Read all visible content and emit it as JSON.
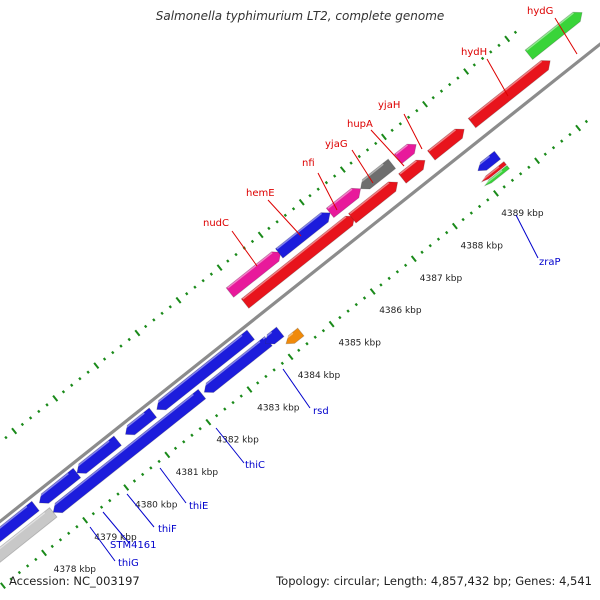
{
  "title": "Salmonella typhimurium LT2, complete genome",
  "footer": {
    "accession": "Accession: NC_003197",
    "summary": "Topology: circular; Length: 4,857,432 bp; Genes: 4,541"
  },
  "colors": {
    "forward_gene": "#e8141c",
    "reverse_gene": "#1c1cdc",
    "pink_gene": "#e8199b",
    "gray_gene": "#6e6e6e",
    "green_gene": "#39d439",
    "orange_gene": "#f08a0a",
    "light_gray_gene": "#c8c8c8",
    "backbone": "#8c8c8c",
    "tick_marks": "#1a8a1a",
    "forward_label": "#dd0000",
    "reverse_label": "#0000cc"
  },
  "scale_ticks": [
    "4378 kbp",
    "4379 kbp",
    "4380 kbp",
    "4381 kbp",
    "4382 kbp",
    "4383 kbp",
    "4384 kbp",
    "4385 kbp",
    "4386 kbp",
    "4387 kbp",
    "4388 kbp",
    "4389 kbp"
  ],
  "forward_labels": [
    "nudC",
    "hemE",
    "nfi",
    "yjaG",
    "hupA",
    "yjaH",
    "hydH",
    "hydG"
  ],
  "reverse_labels": [
    "thiG",
    "STM4161",
    "thiF",
    "thiE",
    "thiC",
    "rsd",
    "zraP"
  ]
}
